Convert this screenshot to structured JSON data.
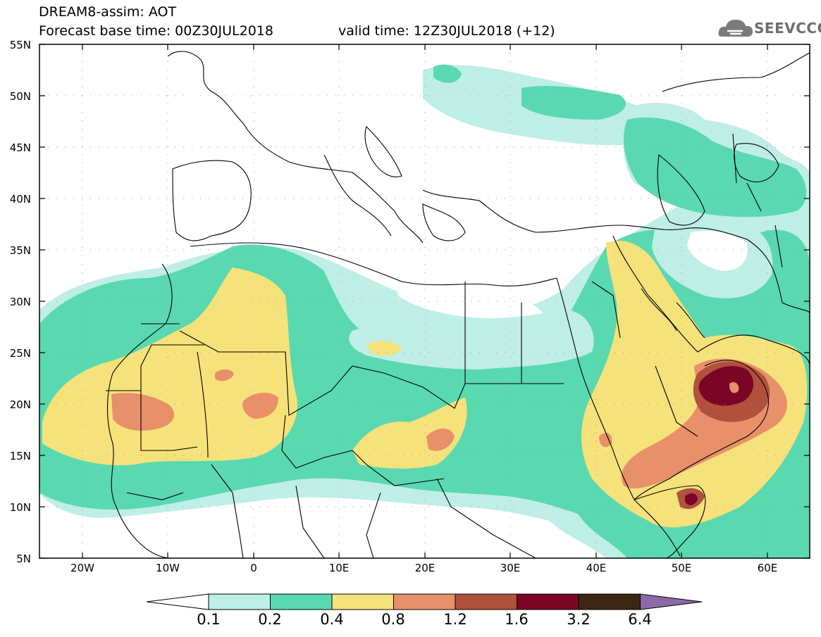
{
  "header": {
    "title": "DREAM8-assim: AOT",
    "base_time": "Forecast base time: 00Z30JUL2018",
    "valid_time": "valid time: 12Z30JUL2018 (+12)",
    "logo_text": "SEEVCCC"
  },
  "axes": {
    "lat_labels": [
      "55N",
      "50N",
      "45N",
      "40N",
      "35N",
      "30N",
      "25N",
      "20N",
      "15N",
      "10N",
      "5N"
    ],
    "lon_labels": [
      "20W",
      "10W",
      "0",
      "10E",
      "20E",
      "30E",
      "40E",
      "50E",
      "60E"
    ]
  },
  "colorbar": {
    "labels": [
      "0.1",
      "0.2",
      "0.4",
      "0.8",
      "1.2",
      "1.6",
      "3.2",
      "6.4"
    ],
    "colors": [
      "#ffffff",
      "#bfeee6",
      "#5ad9b1",
      "#f6e27a",
      "#e8906a",
      "#b0503d",
      "#7a0526",
      "#3d2614",
      "#8c6aa8"
    ]
  }
}
